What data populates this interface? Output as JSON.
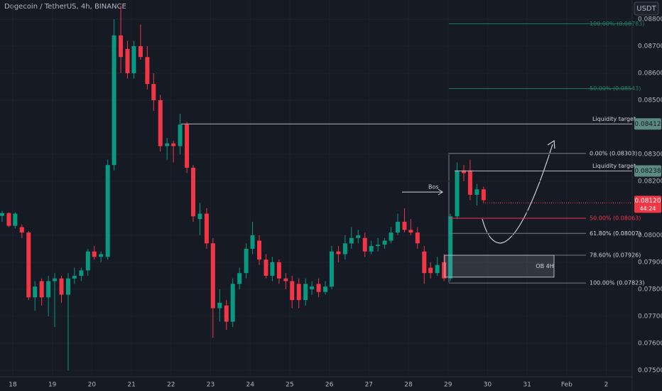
{
  "chart_data": {
    "type": "candlestick",
    "title": "Dogecoin / TetherUS, 4h, BINANCE",
    "currency": "USDT",
    "up_color": "#089981",
    "down_color": "#f23645",
    "grid": true,
    "xlim": [
      17.677,
      33.655
    ],
    "ylim": [
      0.07476,
      0.08871
    ],
    "xticks": [
      18,
      19,
      20,
      21,
      22,
      23,
      24,
      25,
      26,
      27,
      28,
      29,
      30,
      31,
      {
        "value": 32,
        "label": "Feb"
      },
      {
        "value": 33,
        "label": "2"
      }
    ],
    "yticks": [
      {
        "value": 0.088,
        "label": "0.08800"
      },
      {
        "value": 0.087,
        "label": "0.08700"
      },
      {
        "value": 0.086,
        "label": "0.08600"
      },
      {
        "value": 0.085,
        "label": "0.08500"
      },
      {
        "value": 0.083,
        "label": "0.08300"
      },
      {
        "value": 0.082,
        "label": "0.08200"
      },
      {
        "value": 0.08,
        "label": "0.08000"
      },
      {
        "value": 0.079,
        "label": "0.07900"
      },
      {
        "value": 0.078,
        "label": "0.07800"
      },
      {
        "value": 0.077,
        "label": "0.07700"
      },
      {
        "value": 0.076,
        "label": "0.07600"
      },
      {
        "value": 0.075,
        "label": "0.07500"
      }
    ],
    "x": [
      17.73,
      17.9,
      18.06,
      18.23,
      18.4,
      18.56,
      18.73,
      18.9,
      19.06,
      19.23,
      19.4,
      19.56,
      19.73,
      19.9,
      20.06,
      20.23,
      20.4,
      20.56,
      20.73,
      20.9,
      21.06,
      21.23,
      21.4,
      21.56,
      21.73,
      21.9,
      22.06,
      22.23,
      22.4,
      22.56,
      22.73,
      22.9,
      23.06,
      23.23,
      23.4,
      23.56,
      23.73,
      23.9,
      24.06,
      24.23,
      24.4,
      24.56,
      24.73,
      24.9,
      25.06,
      25.23,
      25.4,
      25.56,
      25.73,
      25.9,
      26.06,
      26.23,
      26.4,
      26.56,
      26.73,
      26.9,
      27.06,
      27.23,
      27.4,
      27.56,
      27.73,
      27.9,
      28.06,
      28.23,
      28.4,
      28.56,
      28.73,
      28.9,
      29.06,
      29.23,
      29.4,
      29.56,
      29.73,
      29.9
    ],
    "open": [
      0.08072,
      0.08082,
      0.08035,
      0.0803,
      0.0801,
      0.0777,
      0.0783,
      0.0777,
      0.0783,
      0.0784,
      0.0778,
      0.0784,
      0.0785,
      0.0787,
      0.0794,
      0.0792,
      0.0792,
      0.0826,
      0.0874,
      0.0869,
      0.086,
      0.087,
      0.0866,
      0.0856,
      0.085,
      0.0833,
      0.0834,
      0.0833,
      0.0841,
      0.0825,
      0.0806,
      0.0808,
      0.0797,
      0.0773,
      0.0774,
      0.0768,
      0.0782,
      0.0786,
      0.0795,
      0.0798,
      0.0791,
      0.0785,
      0.079,
      0.0784,
      0.0783,
      0.0782,
      0.0776,
      0.078,
      0.0782,
      0.0779,
      0.0781,
      0.0794,
      0.0793,
      0.0797,
      0.0799,
      0.0799,
      0.0794,
      0.0796,
      0.07965,
      0.0798,
      0.0801,
      0.0805,
      0.0802,
      0.0801,
      0.0794,
      0.0788,
      0.0786,
      0.079,
      0.0784,
      0.0807,
      0.0824,
      0.0824,
      0.0815,
      0.0817
    ],
    "high": [
      0.0809,
      0.08085,
      0.08085,
      0.0804,
      0.08015,
      0.0783,
      0.0784,
      0.0785,
      0.0786,
      0.0785,
      0.0786,
      0.0788,
      0.0788,
      0.0795,
      0.0796,
      0.0794,
      0.0828,
      0.088,
      0.0885,
      0.0872,
      0.0872,
      0.0878,
      0.087,
      0.086,
      0.0852,
      0.0836,
      0.0835,
      0.0845,
      0.0842,
      0.0826,
      0.0812,
      0.081,
      0.0799,
      0.078,
      0.0776,
      0.0784,
      0.0788,
      0.0797,
      0.0805,
      0.08,
      0.0793,
      0.0792,
      0.0791,
      0.0786,
      0.0785,
      0.0784,
      0.0784,
      0.0783,
      0.0784,
      0.0783,
      0.0796,
      0.0796,
      0.08,
      0.0803,
      0.0802,
      0.0801,
      0.0798,
      0.0799,
      0.0799,
      0.0803,
      0.0808,
      0.081,
      0.0806,
      0.0803,
      0.0796,
      0.079,
      0.0792,
      0.0793,
      0.0808,
      0.0827,
      0.0826,
      0.0828,
      0.0819,
      0.0818
    ],
    "low": [
      0.0805,
      0.0803,
      0.08025,
      0.0799,
      0.0776,
      0.0772,
      0.0774,
      0.077,
      0.0766,
      0.0775,
      0.075,
      0.0782,
      0.0783,
      0.0785,
      0.0791,
      0.079,
      0.0791,
      0.0824,
      0.086,
      0.0858,
      0.0858,
      0.0865,
      0.0854,
      0.0846,
      0.0831,
      0.0828,
      0.0827,
      0.083,
      0.0823,
      0.0805,
      0.08,
      0.0795,
      0.0762,
      0.0768,
      0.0765,
      0.0766,
      0.078,
      0.0784,
      0.0793,
      0.0789,
      0.0784,
      0.0783,
      0.0782,
      0.078,
      0.0773,
      0.0773,
      0.0774,
      0.0778,
      0.0777,
      0.0778,
      0.078,
      0.079,
      0.0791,
      0.0795,
      0.0797,
      0.0792,
      0.0793,
      0.0794,
      0.0795,
      0.0797,
      0.08,
      0.0801,
      0.08,
      0.0795,
      0.0782,
      0.0784,
      0.0785,
      0.0783,
      0.0783,
      0.0806,
      0.082,
      0.0813,
      0.0811,
      0.0812
    ],
    "close": [
      0.08082,
      0.08035,
      0.0808,
      0.0801,
      0.0777,
      0.0781,
      0.0777,
      0.0783,
      0.0784,
      0.0778,
      0.0784,
      0.0785,
      0.0787,
      0.0794,
      0.0792,
      0.0793,
      0.0826,
      0.0874,
      0.0866,
      0.086,
      0.087,
      0.0866,
      0.0856,
      0.085,
      0.0833,
      0.0834,
      0.0833,
      0.0841,
      0.0825,
      0.0807,
      0.0808,
      0.0797,
      0.0773,
      0.0775,
      0.0768,
      0.0782,
      0.0786,
      0.0795,
      0.08,
      0.0791,
      0.0785,
      0.079,
      0.0784,
      0.0783,
      0.0776,
      0.0776,
      0.0782,
      0.0781,
      0.0779,
      0.0781,
      0.0794,
      0.0793,
      0.0797,
      0.0799,
      0.08,
      0.0794,
      0.0796,
      0.07965,
      0.0798,
      0.0801,
      0.0805,
      0.0802,
      0.0801,
      0.0797,
      0.0786,
      0.0786,
      0.0789,
      0.0784,
      0.0807,
      0.0824,
      0.0823,
      0.0815,
      0.0817,
      0.0813
    ],
    "fib_levels": [
      {
        "label": "100.00% (0.08783)",
        "value": 0.08783,
        "color": "#1f7d6e"
      },
      {
        "label": "50.00% (0.08543)",
        "value": 0.08543,
        "color": "#1f7d6e"
      },
      {
        "label": "0.00% (0.08303)",
        "value": 0.08303,
        "color": "#787b86"
      },
      {
        "label": "50.00% (0.08063)",
        "value": 0.08063,
        "color": "#f23645"
      },
      {
        "label": "61.80% (0.08007)",
        "value": 0.08007,
        "color": "#787b86"
      },
      {
        "label": "78.60% (0.07926)",
        "value": 0.07926,
        "color": "#787b86"
      },
      {
        "label": "100.00% (0.07823)",
        "value": 0.07823,
        "color": "#787b86"
      }
    ],
    "liquidity_targets": [
      {
        "label": "Liquidity target",
        "value": 0.08412
      },
      {
        "label": "Liquidity target",
        "value": 0.08238
      }
    ],
    "current_price": {
      "value": 0.0812,
      "label": "0.08120",
      "countdown": "44:24"
    },
    "bos": {
      "label": "Bos",
      "value": 0.0816
    },
    "ob_zone": {
      "label": "OB 4H",
      "high": 0.07926,
      "low": 0.07845
    }
  }
}
